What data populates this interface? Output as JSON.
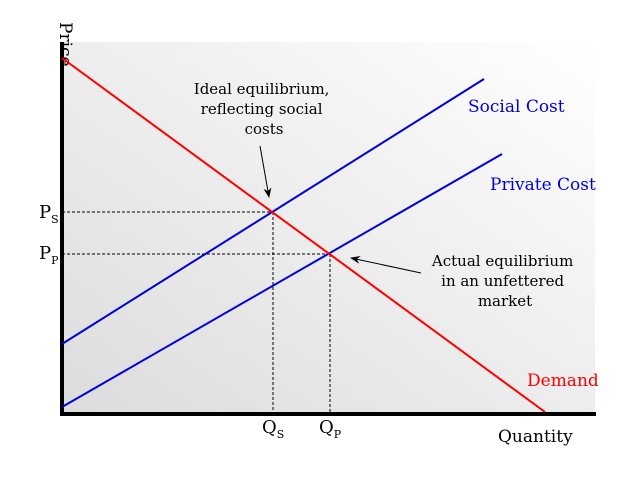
{
  "axes": {
    "y_label": "Price",
    "x_label": "Quantity"
  },
  "curves": {
    "social_cost": {
      "label": "Social Cost",
      "color": "#0000dd"
    },
    "private_cost": {
      "label": "Private Cost",
      "color": "#0000dd"
    },
    "demand": {
      "label": "Demand",
      "color": "#ff0000"
    }
  },
  "ticks": {
    "ps": {
      "main": "P",
      "sub": "S"
    },
    "pp": {
      "main": "P",
      "sub": "P"
    },
    "qs": {
      "main": "Q",
      "sub": "S"
    },
    "qp": {
      "main": "Q",
      "sub": "P"
    }
  },
  "annotations": {
    "ideal": {
      "lines": [
        "Ideal equilibrium,",
        "reflecting social",
        "costs"
      ]
    },
    "actual": {
      "lines": [
        "Actual equilibrium",
        "in an unfettered",
        "market"
      ]
    }
  }
}
